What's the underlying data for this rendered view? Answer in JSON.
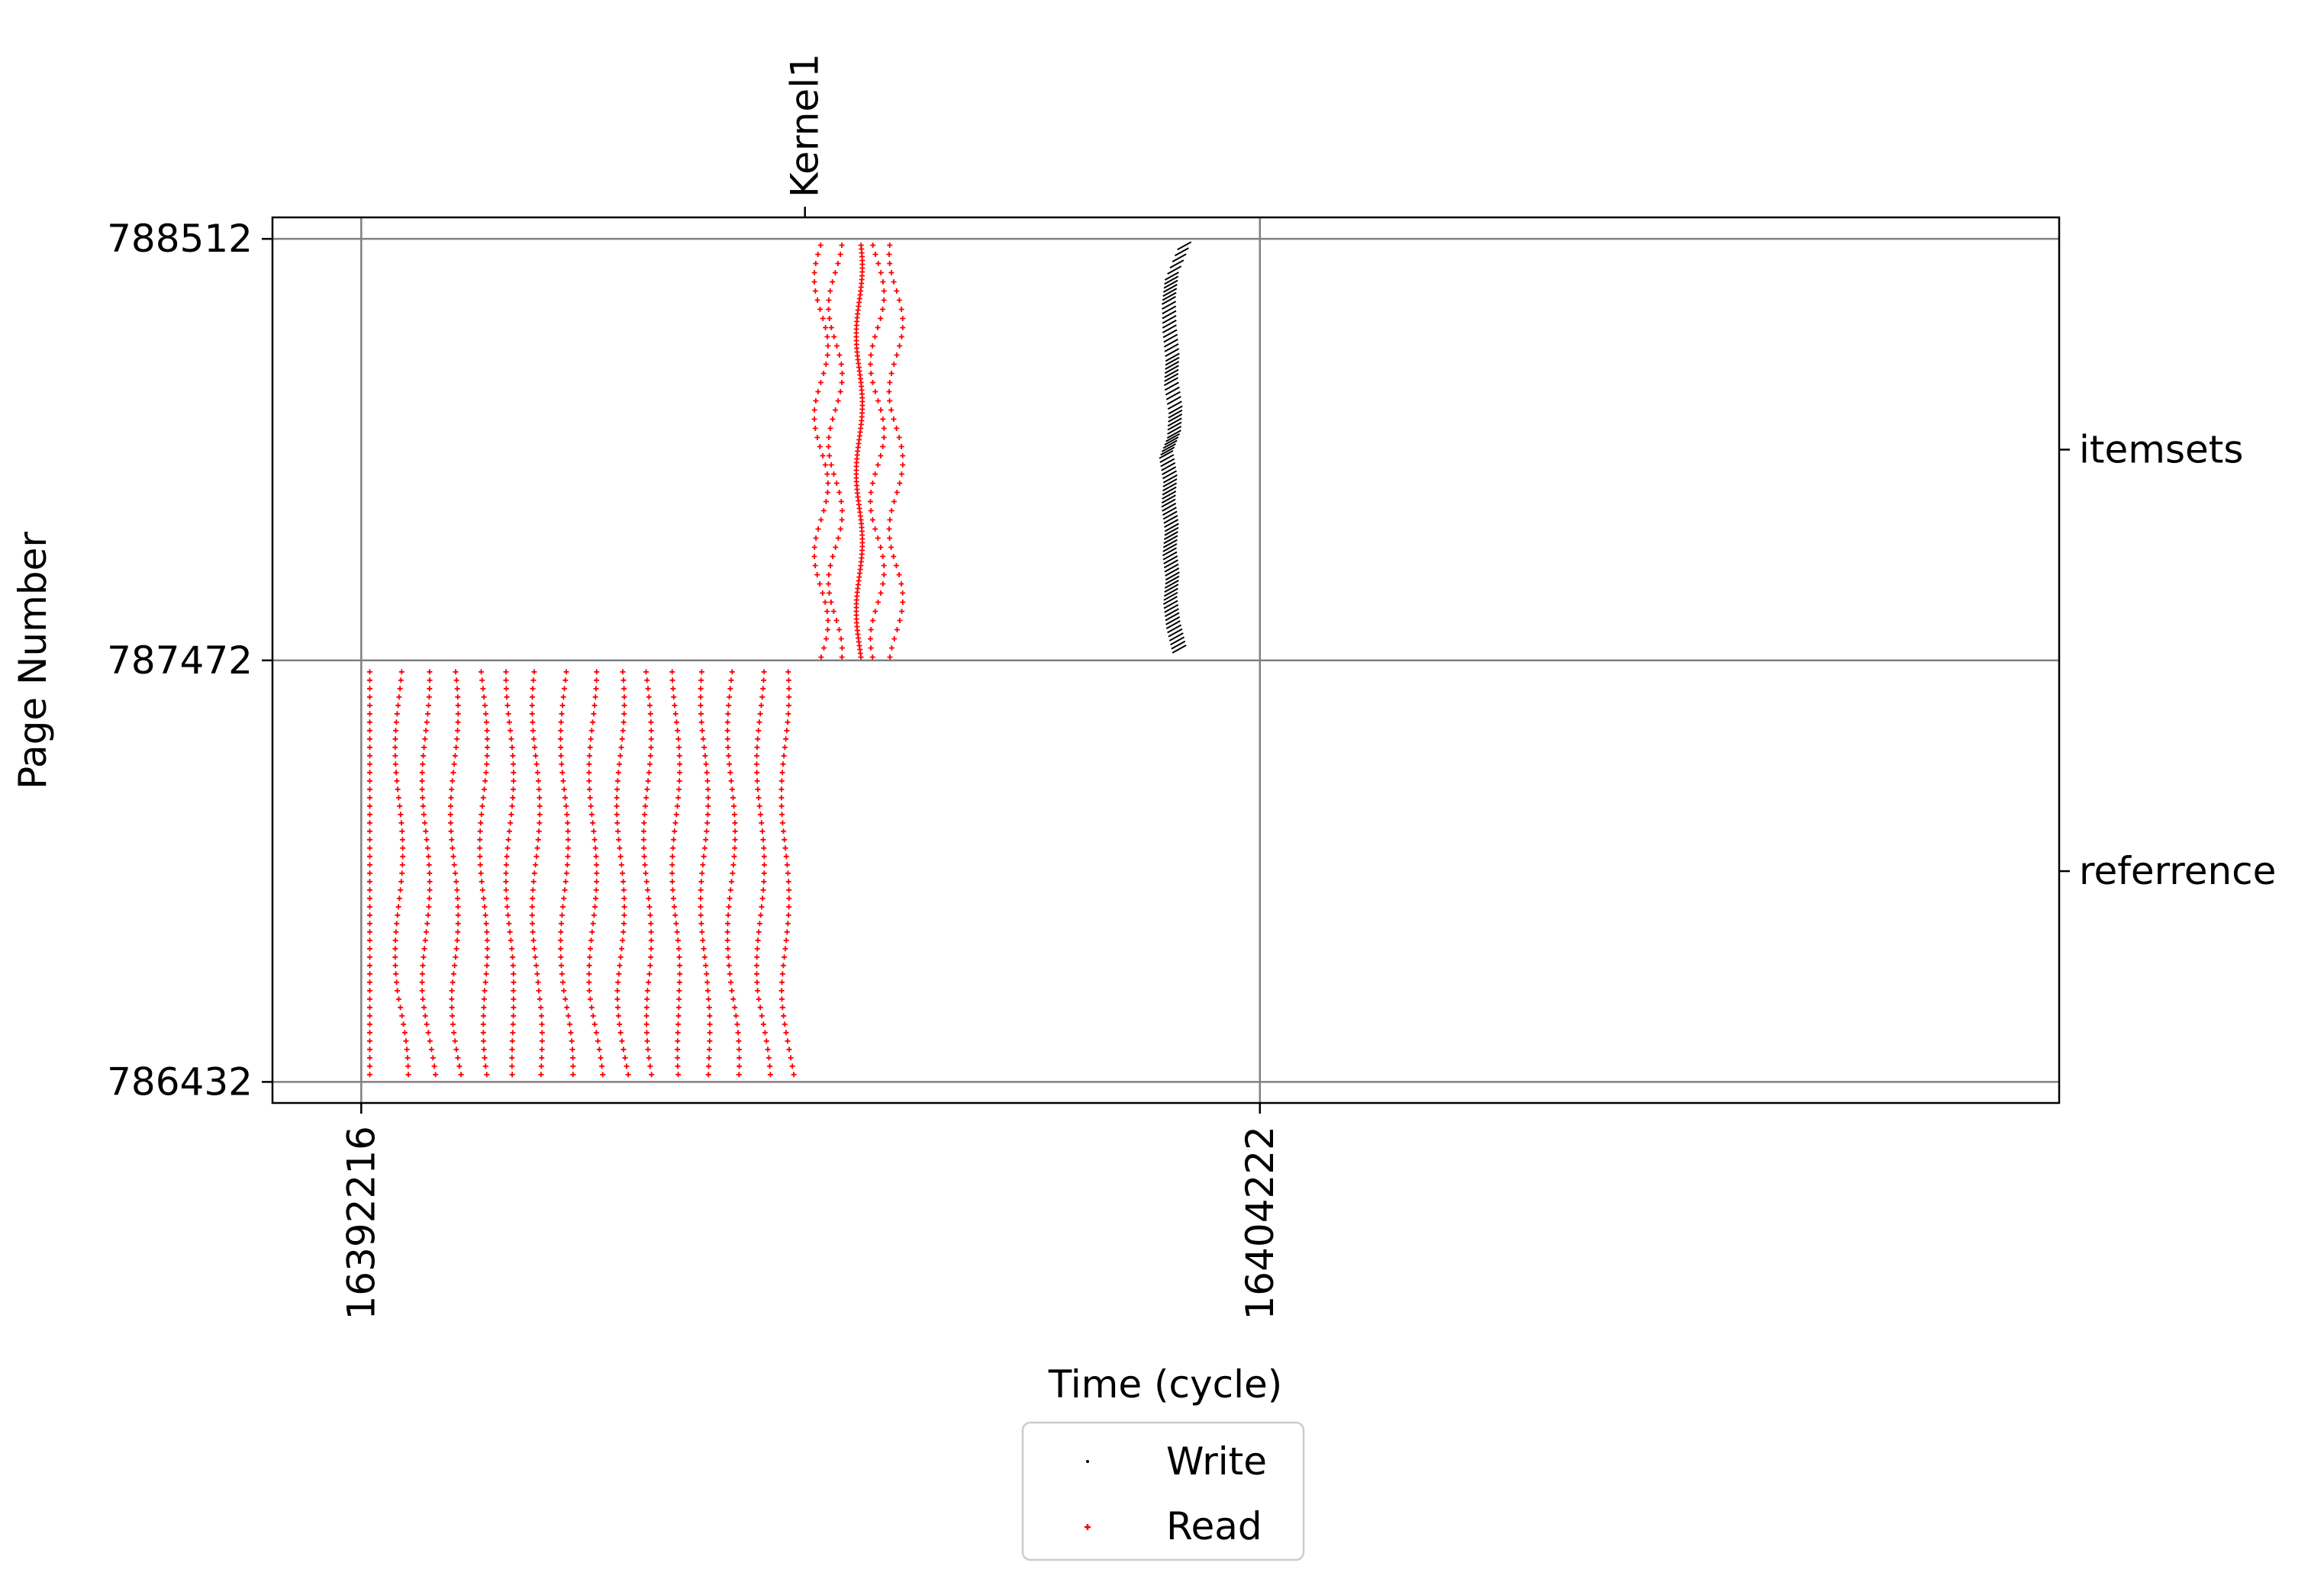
{
  "chart_data": {
    "type": "scatter",
    "xlabel": "Time (cycle)",
    "ylabel": "Page Number",
    "xlim": [
      16391030,
      16414900
    ],
    "ylim": [
      786380,
      788565
    ],
    "x_ticks": [
      {
        "value": 16392216,
        "label": "16392216"
      },
      {
        "value": 16404222,
        "label": "16404222"
      }
    ],
    "y_ticks": [
      {
        "value": 786432,
        "label": "786432"
      },
      {
        "value": 787472,
        "label": "787472"
      },
      {
        "value": 788512,
        "label": "788512"
      }
    ],
    "right_axis_ticks": [
      {
        "value": 787992,
        "label": "itemsets"
      },
      {
        "value": 786952,
        "label": "referrence"
      }
    ],
    "top_axis_ticks": [
      {
        "value": 16398144,
        "label": "Kernel1"
      }
    ],
    "grid": true,
    "legend_position": "below",
    "series": [
      {
        "name": "Write",
        "color": "#000000",
        "marker": "dash",
        "path": [
          [
            16403145,
            787500
          ],
          [
            16403065,
            787560
          ],
          [
            16403025,
            787620
          ],
          [
            16403055,
            787680
          ],
          [
            16403015,
            787740
          ],
          [
            16403045,
            787800
          ],
          [
            16403000,
            787860
          ],
          [
            16403025,
            787920
          ],
          [
            16402970,
            787980
          ],
          [
            16403075,
            788030
          ],
          [
            16403095,
            788090
          ],
          [
            16403035,
            788160
          ],
          [
            16403055,
            788220
          ],
          [
            16403015,
            788290
          ],
          [
            16403005,
            788360
          ],
          [
            16403045,
            788420
          ],
          [
            16403245,
            788510
          ]
        ]
      },
      {
        "name": "Read",
        "color": "#ff0000",
        "marker": "plus",
        "referrence_columns_x": [
          16392330,
          16392720,
          16393080,
          16393460,
          16393850,
          16394200,
          16394550,
          16394930,
          16395310,
          16395680,
          16396040,
          16396420,
          16396800,
          16397160,
          16397550,
          16397880
        ],
        "referrence_pages": [
          786450,
          787460
        ],
        "itemsets_columns_x": [
          16398360,
          16398550,
          16398870,
          16399110,
          16399360
        ]
      }
    ]
  },
  "legend": {
    "items": [
      {
        "label": "Write"
      },
      {
        "label": "Read"
      }
    ]
  },
  "colors": {
    "write": "#000000",
    "read": "#ff0000",
    "grid": "#808080",
    "frame": "#000000",
    "legend_border": "#cccccc"
  }
}
